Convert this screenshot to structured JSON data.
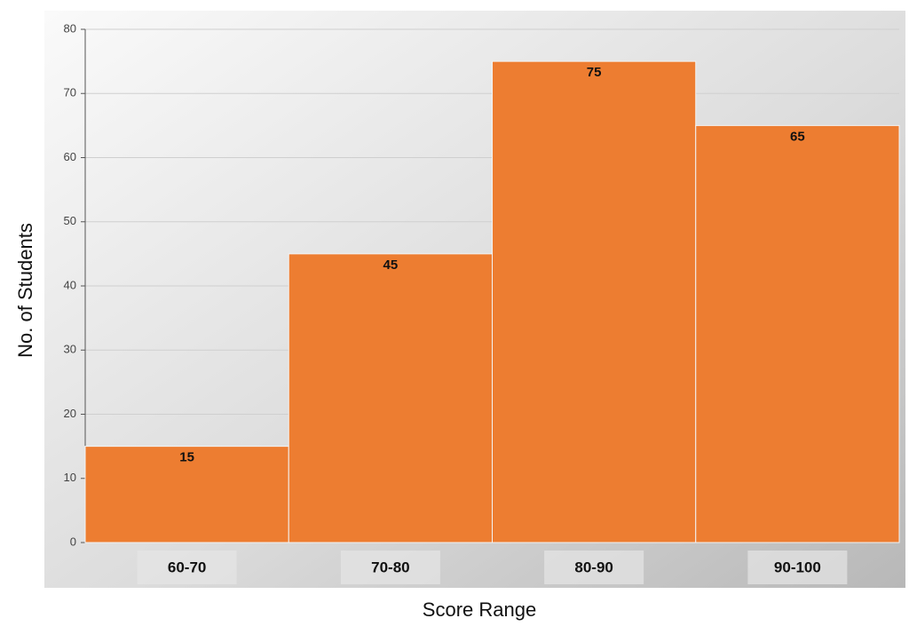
{
  "chart_data": {
    "type": "bar",
    "x_label": "Score Range",
    "y_label": "No. of Students",
    "categories": [
      "60-70",
      "70-80",
      "80-90",
      "90-100"
    ],
    "values": [
      15,
      45,
      75,
      65
    ],
    "color": "#ed7d31",
    "ylim": [
      0,
      80
    ],
    "yticks": [
      0,
      10,
      20,
      30,
      40,
      50,
      60,
      70,
      80
    ],
    "grid": true
  }
}
